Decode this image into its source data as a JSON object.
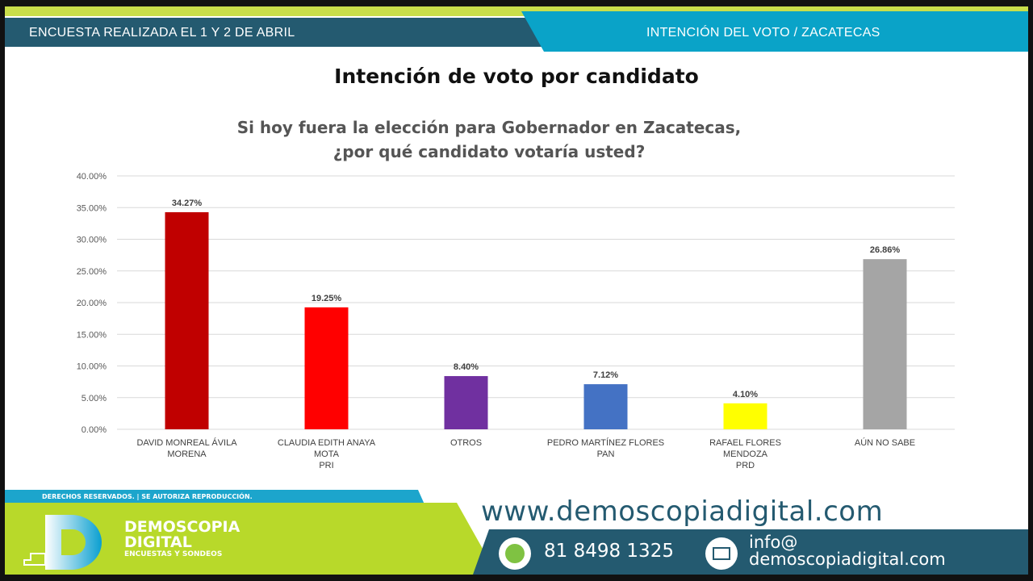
{
  "header": {
    "left": "ENCUESTA REALIZADA EL 1 Y 2 DE ABRIL",
    "right": "INTENCIÓN DEL VOTO / ZACATECAS"
  },
  "title": "Intención de voto por candidato",
  "subtitle_lines": [
    "Si hoy fuera la elección para Gobernador en Zacatecas,",
    "¿por qué candidato votaría usted?"
  ],
  "chart_data": {
    "type": "bar",
    "title": "Si hoy fuera la elección para Gobernador en Zacatecas, ¿por qué candidato votaría usted?",
    "categories": [
      [
        "DAVID MONREAL ÁVILA",
        "MORENA"
      ],
      [
        "CLAUDIA EDITH ANAYA",
        "MOTA",
        "PRI"
      ],
      [
        "OTROS"
      ],
      [
        "PEDRO MARTÍNEZ FLORES",
        "PAN"
      ],
      [
        "RAFAEL FLORES",
        "MENDOZA",
        "PRD"
      ],
      [
        "AÚN NO SABE"
      ]
    ],
    "values": [
      34.27,
      19.25,
      8.4,
      7.12,
      4.1,
      26.86
    ],
    "data_labels": [
      "34.27%",
      "19.25%",
      "8.40%",
      "7.12%",
      "4.10%",
      "26.86%"
    ],
    "colors": [
      "#c00000",
      "#ff0000",
      "#7030a0",
      "#4472c4",
      "#ffff00",
      "#a5a5a5"
    ],
    "ylim": [
      0,
      40
    ],
    "yticks": [
      "0.00%",
      "5.00%",
      "10.00%",
      "15.00%",
      "20.00%",
      "25.00%",
      "30.00%",
      "35.00%",
      "40.00%"
    ],
    "grid": true
  },
  "footer": {
    "rights": "DERECHOS RESERVADOS.  |  SE AUTORIZA REPRODUCCIÓN.",
    "brand_line1": "DEMOSCOPIA",
    "brand_line2": "DIGITAL",
    "brand_tagline": "ENCUESTAS Y SONDEOS",
    "url": "www.demoscopiadigital.com",
    "phone": "81 8498 1325",
    "email_line1": "info@",
    "email_line2": "demoscopiadigital.com"
  }
}
